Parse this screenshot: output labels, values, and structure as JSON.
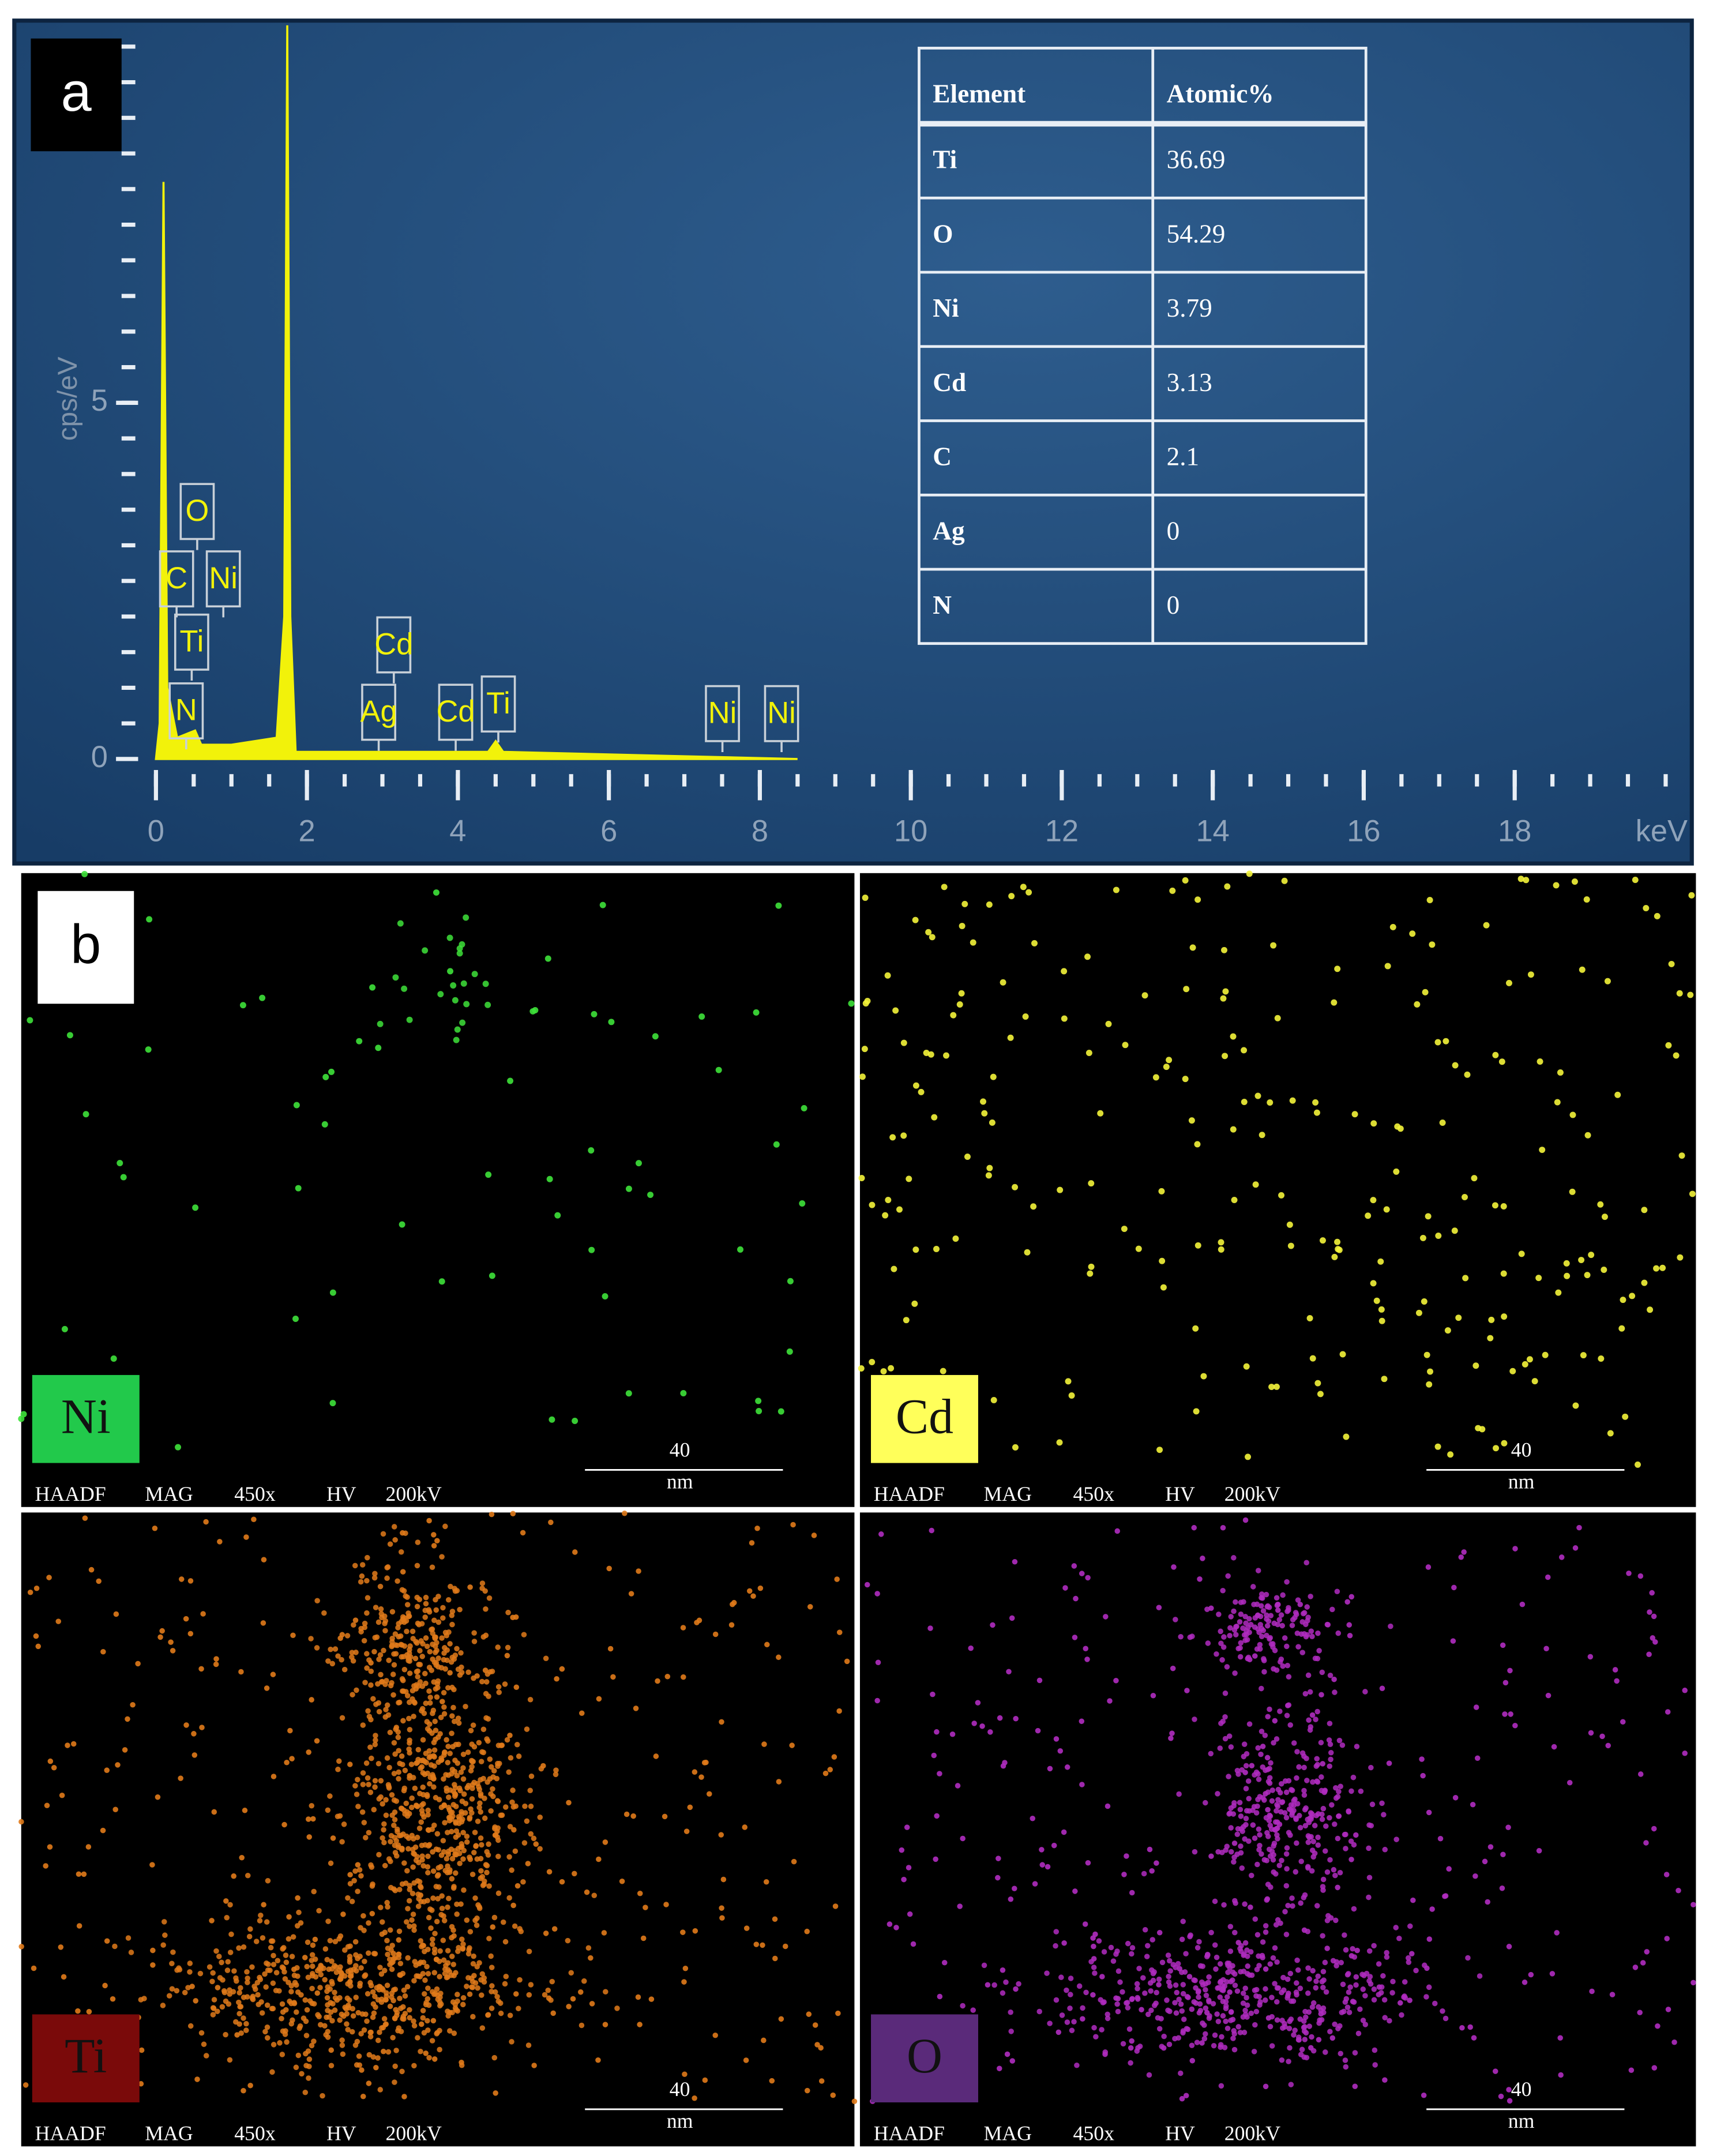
{
  "panel_a": {
    "label": "a",
    "y_axis_label": "cps/eV",
    "x_unit": "keV",
    "xlim": [
      0,
      20
    ],
    "ylim": [
      0,
      10.5
    ],
    "xticks": [
      0,
      2,
      4,
      6,
      8,
      10,
      12,
      14,
      16,
      18
    ],
    "yticks": [
      0,
      5
    ],
    "spectrum": {
      "color": "#f2f20a",
      "x": [
        0,
        0.05,
        0.1,
        0.15,
        0.28,
        0.52,
        0.6,
        1.0,
        1.6,
        1.7,
        1.74,
        1.78,
        1.85,
        4.4,
        4.5,
        4.6,
        8.5
      ],
      "y": [
        0,
        0.5,
        8.1,
        1,
        0.3,
        0.4,
        0.2,
        0.2,
        0.3,
        2,
        10.3,
        2,
        0.1,
        0.1,
        0.25,
        0.1,
        0
      ]
    },
    "peak_labels": [
      "O",
      "C",
      "Ni",
      "Ti",
      "N",
      "Cd",
      "Ag",
      "Cd",
      "Ti",
      "Ni",
      "Ni"
    ],
    "table": {
      "header": [
        "Element",
        "Atomic%"
      ],
      "rows": [
        [
          "Ti",
          36.69
        ],
        [
          "O",
          54.29
        ],
        [
          "Ni",
          3.79
        ],
        [
          "Cd",
          3.13
        ],
        [
          "C",
          2.1
        ],
        [
          "Ag",
          0
        ],
        [
          "N",
          0
        ]
      ]
    }
  },
  "panel_b": {
    "label": "b",
    "maps": [
      {
        "element": "Ni",
        "color": "#3ee23a",
        "label_color": "#22c94b",
        "scale_value": 40,
        "scale_unit": "nm",
        "footer": [
          "HAADF",
          "MAG",
          "450x",
          "HV",
          "200kV"
        ]
      },
      {
        "element": "Cd",
        "color": "#f4f43a",
        "label_color": "#ffff5a",
        "scale_value": 40,
        "scale_unit": "nm",
        "footer": [
          "HAADF",
          "MAG",
          "450x",
          "HV",
          "200kV"
        ]
      },
      {
        "element": "Ti",
        "color": "#e07a1a",
        "label_color": "#7a0a0a",
        "scale_value": 40,
        "scale_unit": "nm",
        "footer": [
          "HAADF",
          "MAG",
          "450x",
          "HV",
          "200kV"
        ]
      },
      {
        "element": "O",
        "color": "#b02cc0",
        "label_color": "#5a2a7a",
        "scale_value": 40,
        "scale_unit": "nm",
        "footer": [
          "HAADF",
          "MAG",
          "450x",
          "HV",
          "200kV"
        ]
      }
    ]
  }
}
